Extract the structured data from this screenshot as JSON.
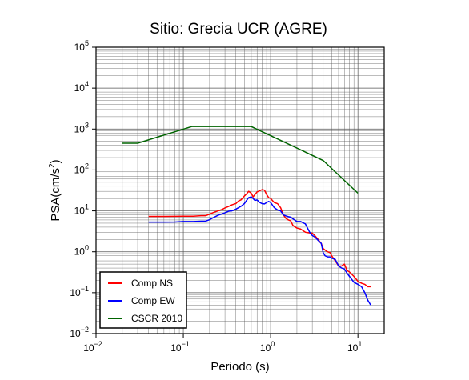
{
  "chart_data": {
    "type": "line",
    "title": "Sitio: Grecia UCR (AGRE)",
    "xlabel": "Periodo (s)",
    "ylabel_main": "PSA(cm/s",
    "ylabel_sup": "2",
    "ylabel_end": ")",
    "x_scale": "log",
    "y_scale": "log",
    "xlim": [
      0.01,
      20
    ],
    "ylim": [
      0.01,
      100000
    ],
    "grid": true,
    "legend_position": "bottom-left",
    "x_ticks": [
      {
        "base": "10",
        "exp": "−2",
        "value": 0.01
      },
      {
        "base": "10",
        "exp": "−1",
        "value": 0.1
      },
      {
        "base": "10",
        "exp": "0",
        "value": 1
      },
      {
        "base": "10",
        "exp": "1",
        "value": 10
      }
    ],
    "y_ticks": [
      {
        "base": "10",
        "exp": "−2",
        "value": 0.01
      },
      {
        "base": "10",
        "exp": "−1",
        "value": 0.1
      },
      {
        "base": "10",
        "exp": "0",
        "value": 1
      },
      {
        "base": "10",
        "exp": "1",
        "value": 10
      },
      {
        "base": "10",
        "exp": "2",
        "value": 100
      },
      {
        "base": "10",
        "exp": "3",
        "value": 1000
      },
      {
        "base": "10",
        "exp": "4",
        "value": 10000
      },
      {
        "base": "10",
        "exp": "5",
        "value": 100000
      }
    ],
    "series": [
      {
        "name": "Comp NS",
        "color": "#ff0000",
        "points": [
          [
            0.04,
            7.3
          ],
          [
            0.06,
            7.3
          ],
          [
            0.08,
            7.35
          ],
          [
            0.1,
            7.4
          ],
          [
            0.13,
            7.4
          ],
          [
            0.16,
            7.6
          ],
          [
            0.18,
            7.6
          ],
          [
            0.2,
            8.3
          ],
          [
            0.22,
            9.1
          ],
          [
            0.25,
            10.0
          ],
          [
            0.28,
            10.9
          ],
          [
            0.3,
            11.8
          ],
          [
            0.33,
            12.8
          ],
          [
            0.36,
            14.0
          ],
          [
            0.4,
            15.1
          ],
          [
            0.43,
            17.5
          ],
          [
            0.46,
            18.7
          ],
          [
            0.5,
            23.0
          ],
          [
            0.53,
            26.0
          ],
          [
            0.56,
            30.0
          ],
          [
            0.6,
            27.0
          ],
          [
            0.63,
            22.0
          ],
          [
            0.66,
            25.0
          ],
          [
            0.7,
            29.0
          ],
          [
            0.75,
            31.0
          ],
          [
            0.8,
            33.0
          ],
          [
            0.85,
            32.0
          ],
          [
            0.9,
            25.0
          ],
          [
            0.95,
            21.0
          ],
          [
            1.0,
            20.0
          ],
          [
            1.1,
            16.0
          ],
          [
            1.2,
            15.0
          ],
          [
            1.3,
            12.0
          ],
          [
            1.4,
            8.0
          ],
          [
            1.5,
            6.5
          ],
          [
            1.6,
            6.0
          ],
          [
            1.7,
            5.7
          ],
          [
            1.8,
            4.4
          ],
          [
            2.0,
            3.8
          ],
          [
            2.2,
            3.6
          ],
          [
            2.5,
            3.0
          ],
          [
            2.8,
            2.9
          ],
          [
            3.0,
            2.85
          ],
          [
            3.2,
            2.5
          ],
          [
            3.5,
            2.0
          ],
          [
            3.8,
            1.6
          ],
          [
            4.0,
            1.2
          ],
          [
            4.2,
            1.1
          ],
          [
            4.5,
            1.0
          ],
          [
            4.8,
            0.95
          ],
          [
            5.0,
            0.8
          ],
          [
            5.5,
            0.6
          ],
          [
            6.0,
            0.45
          ],
          [
            6.5,
            0.45
          ],
          [
            7.0,
            0.5
          ],
          [
            7.5,
            0.35
          ],
          [
            8.0,
            0.32
          ],
          [
            9.0,
            0.25
          ],
          [
            10.0,
            0.19
          ],
          [
            11.0,
            0.17
          ],
          [
            12.0,
            0.16
          ],
          [
            13.0,
            0.14
          ],
          [
            14.0,
            0.14
          ]
        ]
      },
      {
        "name": "Comp EW",
        "color": "#0000ff",
        "points": [
          [
            0.04,
            5.3
          ],
          [
            0.06,
            5.3
          ],
          [
            0.08,
            5.35
          ],
          [
            0.1,
            5.5
          ],
          [
            0.13,
            5.5
          ],
          [
            0.16,
            5.6
          ],
          [
            0.18,
            5.6
          ],
          [
            0.2,
            6.1
          ],
          [
            0.22,
            6.8
          ],
          [
            0.25,
            7.8
          ],
          [
            0.28,
            8.5
          ],
          [
            0.3,
            9.0
          ],
          [
            0.33,
            9.8
          ],
          [
            0.36,
            10.0
          ],
          [
            0.4,
            11.0
          ],
          [
            0.43,
            12.0
          ],
          [
            0.46,
            13.0
          ],
          [
            0.5,
            15.0
          ],
          [
            0.53,
            18.0
          ],
          [
            0.56,
            21.0
          ],
          [
            0.6,
            22.0
          ],
          [
            0.63,
            20.0
          ],
          [
            0.66,
            18.0
          ],
          [
            0.7,
            18.5
          ],
          [
            0.75,
            16.0
          ],
          [
            0.8,
            15.0
          ],
          [
            0.85,
            14.8
          ],
          [
            0.9,
            16.0
          ],
          [
            0.95,
            17.0
          ],
          [
            1.0,
            16.0
          ],
          [
            1.1,
            12.0
          ],
          [
            1.2,
            10.5
          ],
          [
            1.3,
            10.0
          ],
          [
            1.4,
            8.0
          ],
          [
            1.5,
            7.5
          ],
          [
            1.6,
            7.2
          ],
          [
            1.7,
            7.0
          ],
          [
            1.8,
            6.4
          ],
          [
            2.0,
            5.5
          ],
          [
            2.2,
            5.5
          ],
          [
            2.5,
            4.8
          ],
          [
            2.8,
            3.0
          ],
          [
            3.0,
            2.5
          ],
          [
            3.2,
            2.3
          ],
          [
            3.5,
            1.9
          ],
          [
            3.8,
            1.6
          ],
          [
            4.0,
            0.95
          ],
          [
            4.2,
            0.8
          ],
          [
            4.5,
            0.75
          ],
          [
            4.8,
            0.75
          ],
          [
            5.0,
            0.7
          ],
          [
            5.5,
            0.65
          ],
          [
            6.0,
            0.45
          ],
          [
            6.5,
            0.4
          ],
          [
            7.0,
            0.38
          ],
          [
            7.5,
            0.3
          ],
          [
            8.0,
            0.25
          ],
          [
            9.0,
            0.18
          ],
          [
            10.0,
            0.16
          ],
          [
            11.0,
            0.14
          ],
          [
            12.0,
            0.1
          ],
          [
            13.0,
            0.065
          ],
          [
            14.0,
            0.05
          ]
        ]
      },
      {
        "name": "CSCR 2010",
        "color": "#006400",
        "points": [
          [
            0.02,
            450
          ],
          [
            0.03,
            450
          ],
          [
            0.125,
            1150
          ],
          [
            0.6,
            1150
          ],
          [
            4.0,
            170
          ],
          [
            10.0,
            27
          ]
        ]
      }
    ]
  }
}
